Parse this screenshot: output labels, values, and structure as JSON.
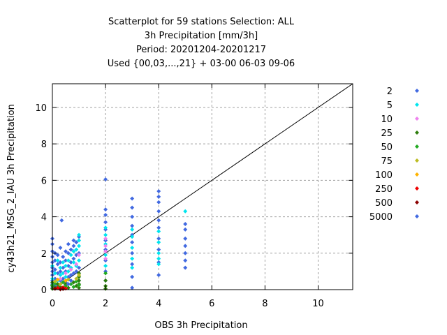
{
  "chart_data": {
    "type": "scatter",
    "title_lines": [
      "Scatterplot for   59 stations Selection: ALL",
      "3h Precipitation [mm/3h]",
      "Period: 20201204-20201217",
      "Used {00,03,...,21} + 03-00 06-03 09-06"
    ],
    "xlabel": "OBS 3h Precipitation",
    "ylabel": "cy43h21_MSG_2_IAU 3h Precipitation",
    "xlim": [
      0,
      11.3
    ],
    "ylim": [
      0,
      11.3
    ],
    "xticks": [
      0,
      2,
      4,
      6,
      8,
      10
    ],
    "yticks": [
      0,
      2,
      4,
      6,
      8,
      10
    ],
    "grid": true,
    "diagonal": true,
    "legend_position": "right",
    "series": [
      {
        "name": "2",
        "color": "#4169e1",
        "points": [
          [
            0,
            0.1
          ],
          [
            0,
            0.3
          ],
          [
            0,
            0.5
          ],
          [
            0,
            0.8
          ],
          [
            0,
            1.0
          ],
          [
            0,
            1.2
          ],
          [
            0,
            1.5
          ],
          [
            0,
            1.8
          ],
          [
            0,
            2.1
          ],
          [
            0,
            2.5
          ],
          [
            0,
            2.8
          ],
          [
            0.1,
            0.2
          ],
          [
            0.1,
            0.6
          ],
          [
            0.1,
            1.1
          ],
          [
            0.1,
            1.6
          ],
          [
            0.1,
            2.0
          ],
          [
            0.2,
            0.3
          ],
          [
            0.2,
            0.9
          ],
          [
            0.2,
            1.4
          ],
          [
            0.2,
            1.9
          ],
          [
            0.3,
            0.5
          ],
          [
            0.3,
            1.0
          ],
          [
            0.3,
            1.5
          ],
          [
            0.3,
            2.3
          ],
          [
            0.35,
            3.8
          ],
          [
            0.4,
            0.6
          ],
          [
            0.4,
            1.2
          ],
          [
            0.4,
            1.8
          ],
          [
            0.5,
            0.4
          ],
          [
            0.5,
            1.0
          ],
          [
            0.5,
            1.6
          ],
          [
            0.5,
            2.1
          ],
          [
            0.6,
            0.7
          ],
          [
            0.6,
            1.3
          ],
          [
            0.6,
            2.0
          ],
          [
            0.6,
            2.5
          ],
          [
            0.7,
            0.8
          ],
          [
            0.7,
            1.5
          ],
          [
            0.7,
            2.2
          ],
          [
            0.8,
            0.9
          ],
          [
            0.8,
            1.7
          ],
          [
            0.8,
            2.4
          ],
          [
            0.8,
            2.7
          ],
          [
            0.9,
            1.0
          ],
          [
            0.9,
            1.9
          ],
          [
            0.9,
            2.6
          ],
          [
            1.0,
            0.5
          ],
          [
            1.0,
            1.2
          ],
          [
            1.0,
            2.0
          ],
          [
            1.0,
            2.9
          ],
          [
            2,
            0.5
          ],
          [
            2,
            1.0
          ],
          [
            2,
            1.6
          ],
          [
            2,
            2.2
          ],
          [
            2,
            2.7
          ],
          [
            2,
            3.3
          ],
          [
            2,
            3.7
          ],
          [
            2,
            4.1
          ],
          [
            2,
            4.4
          ],
          [
            2,
            6.05
          ],
          [
            3,
            0.1
          ],
          [
            3,
            0.7
          ],
          [
            3,
            1.4
          ],
          [
            3,
            2.0
          ],
          [
            3,
            2.6
          ],
          [
            3,
            3.0
          ],
          [
            3,
            3.5
          ],
          [
            3,
            4.0
          ],
          [
            3,
            4.5
          ],
          [
            3,
            5.0
          ],
          [
            4,
            0.8
          ],
          [
            4,
            1.5
          ],
          [
            4,
            2.2
          ],
          [
            4,
            2.8
          ],
          [
            4,
            3.4
          ],
          [
            4,
            3.8
          ],
          [
            4,
            4.3
          ],
          [
            4,
            4.8
          ],
          [
            4,
            5.1
          ],
          [
            4,
            5.4
          ],
          [
            5,
            1.2
          ],
          [
            5,
            1.6
          ],
          [
            5,
            2.0
          ],
          [
            5,
            2.4
          ],
          [
            5,
            2.8
          ],
          [
            5,
            3.3
          ],
          [
            5,
            3.6
          ]
        ]
      },
      {
        "name": "5",
        "color": "#00e5ee",
        "points": [
          [
            0,
            0.6
          ],
          [
            0,
            1.3
          ],
          [
            0.1,
            0.9
          ],
          [
            0.2,
            0.5
          ],
          [
            0.2,
            1.6
          ],
          [
            0.3,
            1.2
          ],
          [
            0.3,
            0.8
          ],
          [
            0.4,
            1.5
          ],
          [
            0.4,
            0.9
          ],
          [
            0.5,
            1.3
          ],
          [
            0.5,
            0.7
          ],
          [
            0.6,
            1.6
          ],
          [
            0.6,
            1.0
          ],
          [
            0.7,
            1.2
          ],
          [
            0.7,
            1.9
          ],
          [
            0.8,
            1.5
          ],
          [
            0.8,
            2.1
          ],
          [
            0.9,
            1.3
          ],
          [
            0.9,
            2.2
          ],
          [
            1.0,
            1.6
          ],
          [
            1.0,
            2.4
          ],
          [
            1.0,
            2.7
          ],
          [
            1.0,
            3.0
          ],
          [
            2,
            1.3
          ],
          [
            2,
            1.9
          ],
          [
            2,
            2.5
          ],
          [
            2,
            3.0
          ],
          [
            2,
            3.4
          ],
          [
            3,
            1.2
          ],
          [
            3,
            1.7
          ],
          [
            3,
            2.3
          ],
          [
            3,
            2.9
          ],
          [
            3,
            3.3
          ],
          [
            4,
            1.4
          ],
          [
            4,
            1.7
          ],
          [
            4,
            2.0
          ],
          [
            4,
            2.6
          ],
          [
            4,
            3.2
          ],
          [
            5,
            4.3
          ]
        ]
      },
      {
        "name": "10",
        "color": "#ee82ee",
        "points": [
          [
            0.3,
            0.6
          ],
          [
            0.5,
            0.9
          ],
          [
            0.7,
            1.1
          ],
          [
            0.9,
            1.4
          ],
          [
            1.0,
            1.9
          ],
          [
            2,
            1.7
          ],
          [
            2,
            2.1
          ],
          [
            2,
            2.4
          ],
          [
            2,
            2.8
          ]
        ]
      },
      {
        "name": "25",
        "color": "#2e7d0c",
        "points": [
          [
            0,
            0.05
          ],
          [
            0,
            0.2
          ],
          [
            0,
            0.4
          ],
          [
            0.1,
            0.1
          ],
          [
            0.2,
            0.3
          ],
          [
            0.3,
            0.15
          ],
          [
            0.5,
            0.3
          ],
          [
            0.6,
            0.1
          ],
          [
            0.8,
            0.4
          ],
          [
            0.9,
            0.2
          ],
          [
            1.0,
            0.1
          ],
          [
            1.0,
            0.3
          ],
          [
            1.0,
            0.5
          ],
          [
            1.0,
            0.7
          ],
          [
            1.0,
            0.9
          ],
          [
            2,
            0.05
          ],
          [
            2,
            0.2
          ],
          [
            2,
            0.5
          ]
        ]
      },
      {
        "name": "50",
        "color": "#22aa22",
        "points": [
          [
            0,
            0.25
          ],
          [
            0.1,
            0.35
          ],
          [
            0.2,
            0.15
          ],
          [
            0.4,
            0.4
          ],
          [
            0.5,
            0.2
          ],
          [
            0.7,
            0.3
          ],
          [
            0.8,
            0.15
          ],
          [
            0.9,
            0.45
          ],
          [
            1.0,
            0.25
          ],
          [
            2,
            0.9
          ]
        ]
      },
      {
        "name": "75",
        "color": "#bcbc22",
        "points": [
          [
            0.1,
            0.45
          ],
          [
            0.3,
            0.3
          ],
          [
            0.6,
            0.55
          ],
          [
            0.9,
            0.6
          ],
          [
            1.0,
            0.8
          ]
        ]
      },
      {
        "name": "100",
        "color": "#ffb300",
        "points": [
          [
            0.2,
            0.55
          ],
          [
            0.5,
            0.5
          ]
        ]
      },
      {
        "name": "250",
        "color": "#ee0000",
        "points": [
          [
            0.2,
            0.1
          ],
          [
            0.3,
            0.05
          ],
          [
            0.4,
            0.12
          ],
          [
            0.5,
            0.06
          ]
        ]
      },
      {
        "name": "500",
        "color": "#8b0000",
        "points": [
          [
            0.1,
            0.05
          ],
          [
            0.3,
            0.02
          ],
          [
            0.4,
            0.04
          ]
        ]
      },
      {
        "name": "5000",
        "color": "#4169e1",
        "points": [
          [
            0.6,
            0.3
          ],
          [
            0.7,
            0.5
          ]
        ]
      }
    ]
  }
}
